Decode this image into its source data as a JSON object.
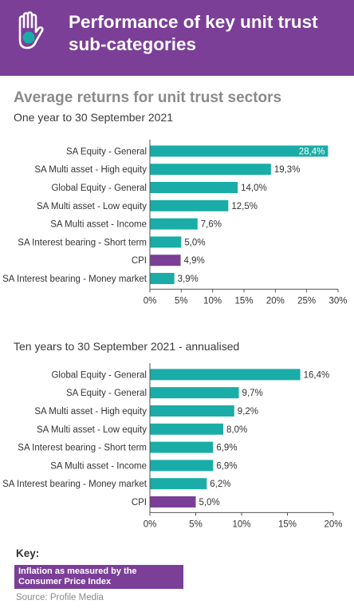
{
  "header": {
    "title": "Performance of key unit trust sub-categories",
    "logo_icon": "hand-icon"
  },
  "colors": {
    "header_bg": "#7b3f98",
    "bar_teal": "#1aaca6",
    "bar_purple": "#7b3f98",
    "logo_teal": "#1aaca6"
  },
  "chart_data": [
    {
      "type": "bar",
      "orientation": "horizontal",
      "title": "Average returns for unit trust sectors",
      "subtitle": "One year to 30 September 2021",
      "categories": [
        "SA Equity - General",
        "SA Multi asset - High equity",
        "Global Equity - General",
        "SA Multi asset - Low equity",
        "SA Multi asset - Income",
        "SA Interest bearing - Short term",
        "CPI",
        "SA Interest bearing - Money market"
      ],
      "values": [
        28.4,
        19.3,
        14.0,
        12.5,
        7.6,
        5.0,
        4.9,
        3.9
      ],
      "value_labels": [
        "28,4%",
        "19,3%",
        "14,0%",
        "12,5%",
        "7,6%",
        "5,0%",
        "4,9%",
        "3,9%"
      ],
      "highlight": [
        false,
        false,
        false,
        false,
        false,
        false,
        true,
        false
      ],
      "xlim": [
        0,
        30
      ],
      "ticks": [
        0,
        5,
        10,
        15,
        20,
        25,
        30
      ],
      "tick_labels": [
        "0%",
        "5%",
        "10%",
        "15%",
        "20%",
        "25%",
        "30%"
      ],
      "grid": false
    },
    {
      "type": "bar",
      "orientation": "horizontal",
      "title": "",
      "subtitle": "Ten years to 30 September 2021 - annualised",
      "categories": [
        "Global Equity - General",
        "SA Equity - General",
        "SA Multi asset - High equity",
        "SA Multi asset - Low equity",
        "SA Interest bearing - Short term",
        "SA Multi asset - Income",
        "SA Interest bearing - Money market",
        "CPI"
      ],
      "values": [
        16.4,
        9.7,
        9.2,
        8.0,
        6.9,
        6.9,
        6.2,
        5.0
      ],
      "value_labels": [
        "16,4%",
        "9,7%",
        "9,2%",
        "8,0%",
        "6,9%",
        "6,9%",
        "6,2%",
        "5,0%"
      ],
      "highlight": [
        false,
        false,
        false,
        false,
        false,
        false,
        false,
        true
      ],
      "xlim": [
        0,
        20
      ],
      "ticks": [
        0,
        5,
        10,
        15,
        20
      ],
      "tick_labels": [
        "0%",
        "5%",
        "10%",
        "15%",
        "20%"
      ],
      "grid": false
    }
  ],
  "key": {
    "label": "Key:",
    "text": "Inflation as measured by the Consumer Price Index"
  },
  "source": "Source: Profile Media"
}
